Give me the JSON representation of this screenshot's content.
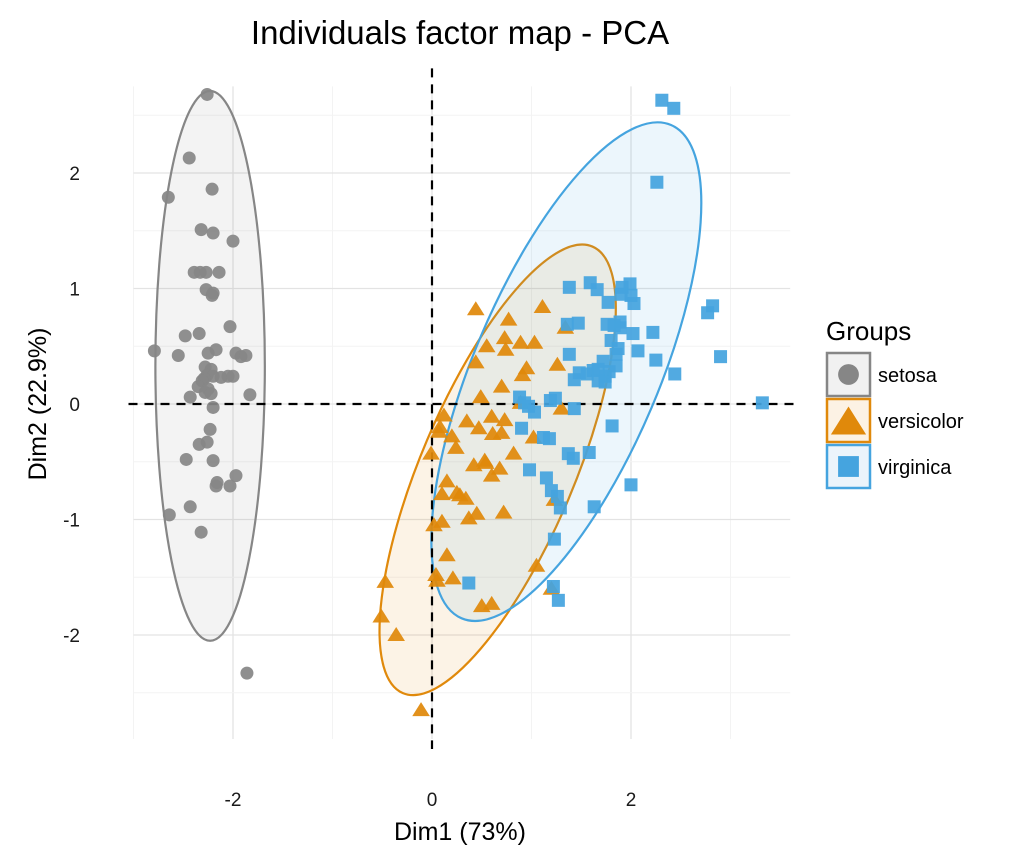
{
  "chart_data": {
    "type": "scatter",
    "title": "Individuals factor map - PCA",
    "xlabel": "Dim1 (73%)",
    "ylabel": "Dim2 (22.9%)",
    "xlim": [
      -3.0,
      3.6
    ],
    "ylim": [
      -2.9,
      2.75
    ],
    "xticks": [
      -2,
      0,
      2
    ],
    "yticks": [
      -2,
      -1,
      0,
      1,
      2
    ],
    "grid": true,
    "reference_lines": {
      "x": 0,
      "y": 0,
      "style": "dashed"
    },
    "legend": {
      "title": "Groups",
      "position": "right"
    },
    "series": [
      {
        "name": "setosa",
        "marker": "circle",
        "color": "#868686",
        "fill": "#f1f1f1",
        "ellipse": {
          "cx": -2.23,
          "cy": 0.33,
          "rx": 0.55,
          "ry": 2.38,
          "angle": 0
        },
        "points": [
          [
            -2.26,
            2.68
          ],
          [
            -2.44,
            2.13
          ],
          [
            -2.65,
            1.79
          ],
          [
            -2.21,
            1.86
          ],
          [
            -2.0,
            1.41
          ],
          [
            -2.2,
            1.48
          ],
          [
            -2.32,
            1.51
          ],
          [
            -2.39,
            1.14
          ],
          [
            -2.33,
            1.14
          ],
          [
            -2.27,
            1.14
          ],
          [
            -2.14,
            1.14
          ],
          [
            -2.27,
            0.99
          ],
          [
            -2.21,
            0.94
          ],
          [
            -2.2,
            0.96
          ],
          [
            -2.48,
            0.59
          ],
          [
            -2.34,
            0.61
          ],
          [
            -2.03,
            0.67
          ],
          [
            -2.17,
            0.47
          ],
          [
            -2.79,
            0.46
          ],
          [
            -2.55,
            0.42
          ],
          [
            -2.25,
            0.44
          ],
          [
            -1.97,
            0.44
          ],
          [
            -1.92,
            0.41
          ],
          [
            -1.87,
            0.42
          ],
          [
            -2.28,
            0.32
          ],
          [
            -2.22,
            0.3
          ],
          [
            -2.26,
            0.25
          ],
          [
            -2.2,
            0.24
          ],
          [
            -2.12,
            0.23
          ],
          [
            -2.05,
            0.24
          ],
          [
            -2.0,
            0.24
          ],
          [
            -2.29,
            0.22
          ],
          [
            -2.31,
            0.2
          ],
          [
            -2.35,
            0.15
          ],
          [
            -2.25,
            0.13
          ],
          [
            -2.28,
            0.1
          ],
          [
            -2.43,
            0.06
          ],
          [
            -2.22,
            0.09
          ],
          [
            -1.83,
            0.08
          ],
          [
            -2.2,
            -0.03
          ],
          [
            -2.23,
            -0.22
          ],
          [
            -2.34,
            -0.35
          ],
          [
            -2.26,
            -0.33
          ],
          [
            -2.47,
            -0.48
          ],
          [
            -2.2,
            -0.49
          ],
          [
            -1.97,
            -0.62
          ],
          [
            -2.16,
            -0.68
          ],
          [
            -2.17,
            -0.71
          ],
          [
            -2.03,
            -0.71
          ],
          [
            -2.64,
            -0.96
          ],
          [
            -2.43,
            -0.89
          ],
          [
            -2.32,
            -1.11
          ],
          [
            -1.86,
            -2.33
          ]
        ]
      },
      {
        "name": "versicolor",
        "marker": "triangle",
        "color": "#e0890b",
        "fill": "#fcf2e4",
        "ellipse": {
          "cx": 0.66,
          "cy": -0.57,
          "rx": 0.77,
          "ry": 2.1,
          "angle": 23
        },
        "points": [
          [
            0.44,
            0.82
          ],
          [
            1.11,
            0.84
          ],
          [
            0.77,
            0.73
          ],
          [
            1.34,
            0.66
          ],
          [
            0.73,
            0.57
          ],
          [
            0.89,
            0.53
          ],
          [
            0.55,
            0.5
          ],
          [
            1.03,
            0.53
          ],
          [
            0.74,
            0.47
          ],
          [
            0.44,
            0.36
          ],
          [
            0.95,
            0.31
          ],
          [
            1.26,
            0.34
          ],
          [
            0.91,
            0.25
          ],
          [
            0.49,
            0.06
          ],
          [
            0.7,
            0.15
          ],
          [
            0.89,
            0.01
          ],
          [
            1.3,
            -0.04
          ],
          [
            0.35,
            -0.15
          ],
          [
            0.6,
            -0.11
          ],
          [
            0.73,
            -0.14
          ],
          [
            0.08,
            -0.2
          ],
          [
            0.47,
            -0.21
          ],
          [
            0.61,
            -0.26
          ],
          [
            0.7,
            -0.25
          ],
          [
            0.07,
            -0.24
          ],
          [
            0.2,
            -0.28
          ],
          [
            0.54,
            -0.51
          ],
          [
            0.24,
            -0.38
          ],
          [
            0.53,
            -0.49
          ],
          [
            0.42,
            -0.53
          ],
          [
            1.02,
            -0.29
          ],
          [
            0.15,
            -0.67
          ],
          [
            0.28,
            -0.79
          ],
          [
            0.25,
            -0.77
          ],
          [
            0.1,
            -0.78
          ],
          [
            0.6,
            -0.62
          ],
          [
            0.68,
            -0.56
          ],
          [
            0.34,
            -0.82
          ],
          [
            0.37,
            -0.99
          ],
          [
            0.72,
            -0.94
          ],
          [
            1.23,
            -0.83
          ],
          [
            -0.01,
            -0.43
          ],
          [
            0.1,
            -1.02
          ],
          [
            0.02,
            -1.05
          ],
          [
            0.15,
            -1.31
          ],
          [
            0.05,
            -1.53
          ],
          [
            0.04,
            -1.48
          ],
          [
            0.21,
            -1.51
          ],
          [
            1.05,
            -1.4
          ],
          [
            0.5,
            -1.75
          ],
          [
            0.6,
            -1.73
          ],
          [
            1.2,
            -1.6
          ],
          [
            -0.47,
            -1.54
          ],
          [
            -0.51,
            -1.84
          ],
          [
            -0.36,
            -2.0
          ],
          [
            -0.11,
            -2.65
          ],
          [
            0.12,
            -0.1
          ],
          [
            0.45,
            -0.95
          ],
          [
            0.82,
            -0.43
          ]
        ]
      },
      {
        "name": "virginica",
        "marker": "square",
        "color": "#45a4df",
        "fill": "#ebf4fb",
        "ellipse": {
          "cx": 1.35,
          "cy": 0.28,
          "rx": 0.93,
          "ry": 2.32,
          "angle": 23
        },
        "points": [
          [
            2.31,
            2.63
          ],
          [
            2.43,
            2.56
          ],
          [
            2.26,
            1.92
          ],
          [
            1.59,
            1.05
          ],
          [
            1.99,
            1.04
          ],
          [
            1.91,
            1.01
          ],
          [
            1.66,
            0.99
          ],
          [
            1.38,
            1.01
          ],
          [
            2.0,
            0.94
          ],
          [
            1.9,
            0.95
          ],
          [
            1.77,
            0.88
          ],
          [
            2.03,
            0.87
          ],
          [
            1.89,
            0.66
          ],
          [
            1.36,
            0.69
          ],
          [
            1.47,
            0.7
          ],
          [
            1.76,
            0.69
          ],
          [
            1.89,
            0.71
          ],
          [
            1.83,
            0.68
          ],
          [
            2.02,
            0.61
          ],
          [
            2.22,
            0.62
          ],
          [
            2.82,
            0.85
          ],
          [
            2.77,
            0.79
          ],
          [
            1.8,
            0.55
          ],
          [
            1.87,
            0.48
          ],
          [
            1.85,
            0.43
          ],
          [
            2.9,
            0.41
          ],
          [
            1.38,
            0.43
          ],
          [
            2.07,
            0.46
          ],
          [
            2.25,
            0.38
          ],
          [
            1.72,
            0.37
          ],
          [
            1.62,
            0.29
          ],
          [
            1.56,
            0.26
          ],
          [
            1.78,
            0.28
          ],
          [
            1.74,
            0.24
          ],
          [
            1.67,
            0.2
          ],
          [
            1.74,
            0.19
          ],
          [
            1.67,
            0.3
          ],
          [
            2.44,
            0.26
          ],
          [
            1.85,
            0.33
          ],
          [
            1.48,
            0.27
          ],
          [
            1.43,
            0.21
          ],
          [
            3.32,
            0.01
          ],
          [
            0.88,
            0.06
          ],
          [
            0.93,
            0.01
          ],
          [
            0.97,
            -0.02
          ],
          [
            1.19,
            0.03
          ],
          [
            1.43,
            -0.04
          ],
          [
            1.24,
            0.05
          ],
          [
            1.81,
            -0.19
          ],
          [
            1.12,
            -0.29
          ],
          [
            1.18,
            -0.3
          ],
          [
            1.37,
            -0.43
          ],
          [
            1.42,
            -0.47
          ],
          [
            1.58,
            -0.42
          ],
          [
            0.98,
            -0.57
          ],
          [
            1.15,
            -0.64
          ],
          [
            1.2,
            -0.75
          ],
          [
            1.26,
            -0.8
          ],
          [
            1.29,
            -0.9
          ],
          [
            1.63,
            -0.89
          ],
          [
            2.0,
            -0.7
          ],
          [
            1.23,
            -1.17
          ],
          [
            0.37,
            -1.55
          ],
          [
            1.22,
            -1.58
          ],
          [
            1.27,
            -1.7
          ],
          [
            0.9,
            -0.21
          ],
          [
            1.03,
            -0.07
          ]
        ]
      }
    ]
  }
}
